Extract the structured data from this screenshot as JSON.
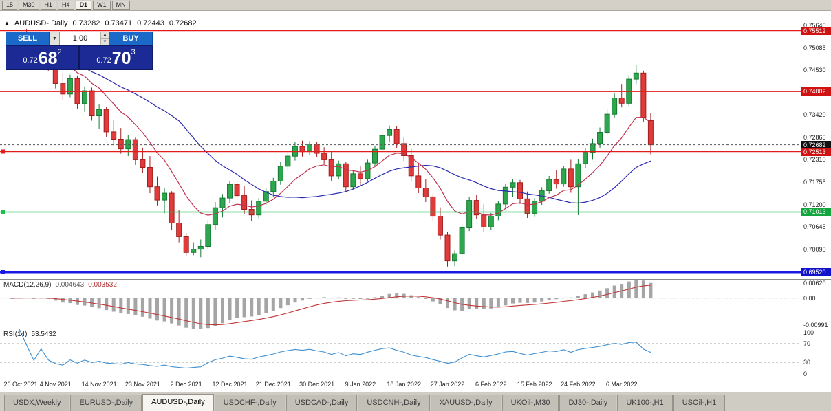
{
  "toolbar": {
    "timeframes": [
      "15",
      "M30",
      "H1",
      "H4",
      "D1",
      "W1",
      "MN"
    ],
    "active": "D1"
  },
  "header": {
    "marker": "▲",
    "title": "AUDUSD-,Daily",
    "open": "0.73282",
    "high": "0.73471",
    "low": "0.72443",
    "close": "0.72682"
  },
  "trade_panel": {
    "sell_label": "SELL",
    "buy_label": "BUY",
    "volume": "1.00",
    "sell_price": {
      "small": "0.72",
      "big": "68",
      "sup": "2"
    },
    "buy_price": {
      "small": "0.72",
      "big": "70",
      "sup": "3"
    }
  },
  "indicators": {
    "macd_name": "MACD(12,26,9)",
    "macd_main": "0.004643",
    "macd_signal": "0.003532",
    "rsi_name": "RSI(14)",
    "rsi_value": "53.5432"
  },
  "tabs": {
    "active": "AUDUSD-,Daily",
    "items": [
      "USDX,Weekly",
      "EURUSD-,Daily",
      "AUDUSD-,Daily",
      "USDCHF-,Daily",
      "USDCAD-,Daily",
      "USDCNH-,Daily",
      "XAUUSD-,Daily",
      "UKOil-,M30",
      "DJ30-,Daily",
      "UK100-,H1",
      "USOil-,H1"
    ]
  },
  "colors": {
    "bull": "#2EA64D",
    "bull_edge": "#157A33",
    "bear": "#E03A3A",
    "bear_edge": "#A31F1F",
    "macd_hist": "#A5A5A5",
    "macd_signal": "#C03636",
    "rsi_line": "#3E8FD0"
  },
  "chart_data": {
    "type": "candlestick",
    "symbol": "AUDUSD-",
    "timeframe": "Daily",
    "ohlc_current": {
      "open": 0.73282,
      "high": 0.73471,
      "low": 0.72443,
      "close": 0.72682
    },
    "price_axis": {
      "min": 0.6935,
      "max": 0.76,
      "ticks": [
        0.7564,
        0.75085,
        0.7453,
        0.73975,
        0.7342,
        0.72865,
        0.7231,
        0.71755,
        0.712,
        0.70645,
        0.7009,
        0.69535
      ]
    },
    "hlines": [
      {
        "price": 0.75512,
        "color": "#E21B1B",
        "width": 1.4,
        "style": "solid",
        "badge": "0.75512",
        "badge_bg": "#D01212",
        "anchor": false
      },
      {
        "price": 0.74002,
        "color": "#E21B1B",
        "width": 1.4,
        "style": "solid",
        "badge": "0.74002",
        "badge_bg": "#D01212",
        "anchor": false
      },
      {
        "price": 0.72682,
        "color": "#555555",
        "width": 1,
        "style": "dotted",
        "badge": "0.72682",
        "badge_bg": "#111111",
        "anchor": false
      },
      {
        "price": 0.72513,
        "color": "#E21B1B",
        "width": 1.4,
        "style": "solid",
        "badge": "0.72513",
        "badge_bg": "#D01212",
        "anchor": true
      },
      {
        "price": 0.71013,
        "color": "#1FBE4F",
        "width": 1.6,
        "style": "solid",
        "badge": "0.71013",
        "badge_bg": "#14A53F",
        "anchor": true
      },
      {
        "price": 0.6952,
        "color": "#1A1AE6",
        "width": 3,
        "style": "solid",
        "badge": "0.69520",
        "badge_bg": "#1212CC",
        "anchor": true
      }
    ],
    "ma": [
      {
        "type": "sma",
        "period": 24,
        "color": "#2B2BB0"
      },
      {
        "type": "ema",
        "period": 10,
        "color": "#C2314E"
      }
    ],
    "macd": {
      "label": "MACD(12,26,9)",
      "value": 0.004643,
      "signal": 0.003532,
      "fast": 12,
      "slow": 26,
      "smooth": 9,
      "range": [
        -0.0112,
        0.0068
      ],
      "axis": [
        {
          "v": 0.0062,
          "label": "0.00620"
        },
        {
          "v": 0,
          "label": "0.00"
        },
        {
          "v": -0.00991,
          "label": "-0.00991"
        }
      ]
    },
    "rsi": {
      "label": "RSI(14)",
      "value": 53.5432,
      "period": 14,
      "levels": [
        100,
        70,
        30,
        0
      ]
    },
    "x_labels": [
      {
        "i": 0,
        "label": "26 Oct 2021"
      },
      {
        "i": 6,
        "label": "4 Nov 2021"
      },
      {
        "i": 12,
        "label": "14 Nov 2021"
      },
      {
        "i": 18,
        "label": "23 Nov 2021"
      },
      {
        "i": 24,
        "label": "2 Dec 2021"
      },
      {
        "i": 30,
        "label": "12 Dec 2021"
      },
      {
        "i": 36,
        "label": "21 Dec 2021"
      },
      {
        "i": 42,
        "label": "30 Dec 2021"
      },
      {
        "i": 48,
        "label": "9 Jan 2022"
      },
      {
        "i": 54,
        "label": "18 Jan 2022"
      },
      {
        "i": 60,
        "label": "27 Jan 2022"
      },
      {
        "i": 66,
        "label": "6 Feb 2022"
      },
      {
        "i": 72,
        "label": "15 Feb 2022"
      },
      {
        "i": 78,
        "label": "24 Feb 2022"
      },
      {
        "i": 84,
        "label": "6 Mar 2022"
      }
    ],
    "candles": [
      [
        0.75,
        0.7516,
        0.7468,
        0.7508
      ],
      [
        0.7508,
        0.7536,
        0.7495,
        0.7528
      ],
      [
        0.7528,
        0.7556,
        0.7508,
        0.7518
      ],
      [
        0.7518,
        0.754,
        0.7478,
        0.749
      ],
      [
        0.749,
        0.7532,
        0.747,
        0.7524
      ],
      [
        0.7524,
        0.7536,
        0.745,
        0.7462
      ],
      [
        0.7462,
        0.748,
        0.7408,
        0.742
      ],
      [
        0.742,
        0.7446,
        0.7378,
        0.7394
      ],
      [
        0.7394,
        0.7442,
        0.7386,
        0.7432
      ],
      [
        0.7432,
        0.744,
        0.7358,
        0.737
      ],
      [
        0.737,
        0.7413,
        0.735,
        0.7402
      ],
      [
        0.7402,
        0.741,
        0.7328,
        0.734
      ],
      [
        0.734,
        0.7368,
        0.7308,
        0.7356
      ],
      [
        0.7356,
        0.7362,
        0.7288,
        0.73
      ],
      [
        0.73,
        0.733,
        0.7268,
        0.7282
      ],
      [
        0.7282,
        0.731,
        0.7246,
        0.7258
      ],
      [
        0.7258,
        0.7292,
        0.724,
        0.7281
      ],
      [
        0.7281,
        0.7286,
        0.7218,
        0.7231
      ],
      [
        0.7231,
        0.7261,
        0.7198,
        0.7212
      ],
      [
        0.7212,
        0.724,
        0.7148,
        0.7164
      ],
      [
        0.7164,
        0.719,
        0.7118,
        0.7131
      ],
      [
        0.7131,
        0.7162,
        0.7098,
        0.7148
      ],
      [
        0.7148,
        0.7153,
        0.7058,
        0.7074
      ],
      [
        0.7074,
        0.7106,
        0.7026,
        0.704
      ],
      [
        0.704,
        0.7049,
        0.6993,
        0.7001
      ],
      [
        0.7001,
        0.7026,
        0.6994,
        0.7009
      ],
      [
        0.7009,
        0.7033,
        0.6989,
        0.7016
      ],
      [
        0.7016,
        0.7081,
        0.7008,
        0.707
      ],
      [
        0.707,
        0.7126,
        0.7058,
        0.7112
      ],
      [
        0.7112,
        0.7146,
        0.7088,
        0.7136
      ],
      [
        0.7136,
        0.7179,
        0.7124,
        0.717
      ],
      [
        0.717,
        0.7178,
        0.7128,
        0.7142
      ],
      [
        0.7142,
        0.7166,
        0.7096,
        0.7108
      ],
      [
        0.7108,
        0.713,
        0.708,
        0.7094
      ],
      [
        0.7094,
        0.7136,
        0.7086,
        0.7128
      ],
      [
        0.7128,
        0.7161,
        0.7119,
        0.7152
      ],
      [
        0.7152,
        0.7186,
        0.7139,
        0.7178
      ],
      [
        0.7178,
        0.7226,
        0.7169,
        0.7215
      ],
      [
        0.7215,
        0.7249,
        0.7204,
        0.724
      ],
      [
        0.724,
        0.7276,
        0.7229,
        0.7264
      ],
      [
        0.7264,
        0.7278,
        0.7239,
        0.7251
      ],
      [
        0.7251,
        0.7277,
        0.7243,
        0.727
      ],
      [
        0.727,
        0.7276,
        0.7237,
        0.7247
      ],
      [
        0.7247,
        0.7262,
        0.7221,
        0.7231
      ],
      [
        0.7231,
        0.7252,
        0.7179,
        0.7191
      ],
      [
        0.7191,
        0.7229,
        0.7184,
        0.7221
      ],
      [
        0.7221,
        0.7226,
        0.7153,
        0.7164
      ],
      [
        0.7164,
        0.7203,
        0.7157,
        0.7196
      ],
      [
        0.7196,
        0.7216,
        0.7168,
        0.7184
      ],
      [
        0.7184,
        0.7231,
        0.7177,
        0.7223
      ],
      [
        0.7223,
        0.7266,
        0.7214,
        0.7257
      ],
      [
        0.7257,
        0.7303,
        0.7249,
        0.7291
      ],
      [
        0.7291,
        0.7316,
        0.7274,
        0.7306
      ],
      [
        0.7306,
        0.7314,
        0.726,
        0.7271
      ],
      [
        0.7271,
        0.7286,
        0.7228,
        0.7241
      ],
      [
        0.7241,
        0.7258,
        0.7178,
        0.7191
      ],
      [
        0.7191,
        0.7223,
        0.7148,
        0.7161
      ],
      [
        0.7161,
        0.7183,
        0.7126,
        0.7139
      ],
      [
        0.7139,
        0.7148,
        0.708,
        0.7091
      ],
      [
        0.7091,
        0.7113,
        0.7033,
        0.7044
      ],
      [
        0.7044,
        0.7052,
        0.6966,
        0.698
      ],
      [
        0.698,
        0.7006,
        0.6967,
        0.6998
      ],
      [
        0.6998,
        0.7071,
        0.6991,
        0.7062
      ],
      [
        0.7062,
        0.7139,
        0.7054,
        0.713
      ],
      [
        0.713,
        0.7143,
        0.7084,
        0.7094
      ],
      [
        0.7094,
        0.7121,
        0.7051,
        0.7064
      ],
      [
        0.7064,
        0.7099,
        0.7057,
        0.7091
      ],
      [
        0.7091,
        0.7129,
        0.7081,
        0.7121
      ],
      [
        0.7121,
        0.7171,
        0.7112,
        0.7163
      ],
      [
        0.7163,
        0.7183,
        0.7139,
        0.7174
      ],
      [
        0.7174,
        0.7181,
        0.7121,
        0.7134
      ],
      [
        0.7134,
        0.7152,
        0.7087,
        0.7098
      ],
      [
        0.7098,
        0.7136,
        0.7089,
        0.7128
      ],
      [
        0.7128,
        0.7163,
        0.7119,
        0.7154
      ],
      [
        0.7154,
        0.7191,
        0.7147,
        0.7182
      ],
      [
        0.7182,
        0.7206,
        0.7159,
        0.7171
      ],
      [
        0.7171,
        0.7216,
        0.7164,
        0.7208
      ],
      [
        0.7208,
        0.7231,
        0.7149,
        0.7164
      ],
      [
        0.7164,
        0.7232,
        0.7094,
        0.7221
      ],
      [
        0.7221,
        0.7259,
        0.7211,
        0.7249
      ],
      [
        0.7249,
        0.7283,
        0.7231,
        0.7271
      ],
      [
        0.7271,
        0.7311,
        0.7259,
        0.7299
      ],
      [
        0.7299,
        0.7356,
        0.7291,
        0.7344
      ],
      [
        0.7344,
        0.7396,
        0.7336,
        0.7384
      ],
      [
        0.7384,
        0.7419,
        0.7361,
        0.7371
      ],
      [
        0.7371,
        0.7441,
        0.7364,
        0.7431
      ],
      [
        0.7431,
        0.7466,
        0.7419,
        0.7446
      ],
      [
        0.7446,
        0.7452,
        0.7324,
        0.7336
      ],
      [
        0.73282,
        0.73471,
        0.72443,
        0.72682
      ]
    ]
  }
}
